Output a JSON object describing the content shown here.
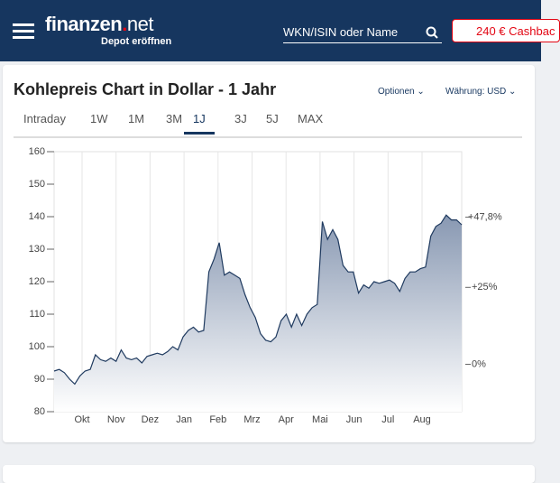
{
  "header": {
    "logo": [
      "finanzen",
      "net"
    ],
    "logo_sub": "Depot eröffnen",
    "search_placeholder": "WKN/ISIN oder Name",
    "button": "240 € Cashbac"
  },
  "card": {
    "title": "Kohlepreis Chart in Dollar - 1 Jahr",
    "options": "Optionen",
    "currency": "Währung: USD",
    "tabs": [
      "Intraday",
      "1W",
      "1M",
      "3M",
      "1J",
      "3J",
      "5J",
      "MAX"
    ],
    "active_tab": 4
  },
  "chart_data": {
    "type": "area",
    "color": "#1f3a5f",
    "values": [
      92.5,
      93,
      92,
      90,
      88.5,
      91,
      92.5,
      93,
      97.5,
      96,
      95.5,
      96.5,
      95.5,
      99,
      96.5,
      96,
      96.5,
      95,
      97,
      97.5,
      98,
      97.5,
      98.5,
      100,
      99,
      103,
      105,
      106,
      104.5,
      105,
      123,
      127,
      132,
      122,
      123,
      122,
      121,
      116,
      112,
      109,
      104,
      102,
      101.5,
      103,
      108,
      110,
      106,
      110,
      106.5,
      110,
      112,
      113,
      138.5,
      133,
      136,
      133,
      125,
      123,
      123,
      116.5,
      119,
      118,
      120,
      119.5,
      120,
      120.5,
      119.5,
      117,
      121,
      123,
      123,
      124,
      124.5,
      134,
      137,
      138,
      140.5,
      139,
      139,
      137.5
    ],
    "xtick_labels": [
      "Okt",
      "Nov",
      "Dez",
      "Jan",
      "Feb",
      "Mrz",
      "Apr",
      "Mai",
      "Jun",
      "Jul",
      "Aug"
    ],
    "ylim": [
      80,
      160
    ],
    "yticks": [
      80,
      90,
      100,
      110,
      120,
      130,
      140,
      150,
      160
    ],
    "y2lim": [
      -15.4,
      69.1
    ],
    "y2ticks": [
      {
        "value": 0,
        "label": "0%"
      },
      {
        "value": 25,
        "label": "+25%"
      },
      {
        "value": 47.8,
        "label": "+47,8%"
      }
    ],
    "grid": true
  }
}
